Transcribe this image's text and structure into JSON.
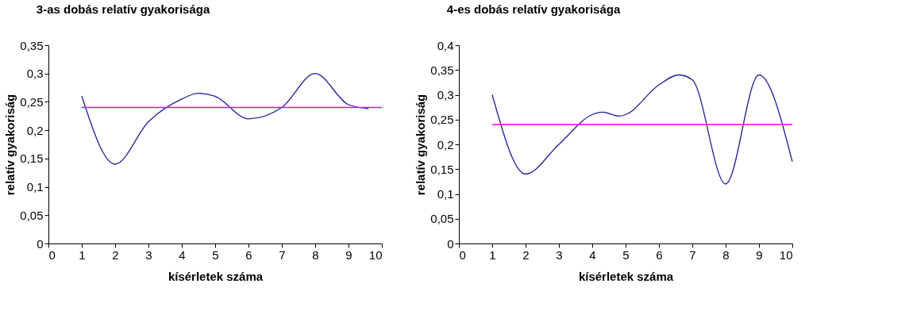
{
  "chart_data": [
    {
      "type": "line",
      "title": "3-as dobás relatív gyakorisága",
      "xlabel": "kísérletek száma",
      "ylabel": "relatív gyakoriság",
      "series": [
        {
          "color": "#1f1f99",
          "x": [
            1,
            2,
            3,
            4,
            4.5,
            5,
            6,
            7,
            8,
            9,
            9.6
          ],
          "values": [
            0.26,
            0.14,
            0.215,
            0.255,
            0.265,
            0.26,
            0.22,
            0.24,
            0.3,
            0.245,
            0.238
          ]
        }
      ],
      "xlim": [
        0,
        10
      ],
      "xticks": [
        0,
        1,
        2,
        3,
        4,
        5,
        6,
        7,
        8,
        9,
        10
      ],
      "ylim": [
        0,
        0.35
      ],
      "yticks": [
        {
          "value": 0,
          "label": "0"
        },
        {
          "value": 0.05,
          "label": "0,05"
        },
        {
          "value": 0.1,
          "label": "0,1"
        },
        {
          "value": 0.15,
          "label": "0,15"
        },
        {
          "value": 0.2,
          "label": "0,2"
        },
        {
          "value": 0.25,
          "label": "0,25"
        },
        {
          "value": 0.3,
          "label": "0,3"
        },
        {
          "value": 0.35,
          "label": "0,35"
        }
      ],
      "ref_lines": [
        {
          "axis": "y",
          "value": 0.24,
          "color": "#ff00ff"
        }
      ],
      "grid": false
    },
    {
      "type": "line",
      "title": "4-es dobás relatív gyakorisága",
      "xlabel": "kísérletek száma",
      "ylabel": "relatív gyakoriság",
      "series": [
        {
          "color": "#1f1f99",
          "x": [
            1,
            2,
            3,
            4,
            4.3,
            4.8,
            5,
            6,
            6.6,
            7,
            8,
            9,
            10
          ],
          "values": [
            0.3,
            0.14,
            0.2,
            0.26,
            0.265,
            0.257,
            0.26,
            0.32,
            0.34,
            0.33,
            0.12,
            0.34,
            0.165
          ]
        }
      ],
      "xlim": [
        0,
        10
      ],
      "xticks": [
        0,
        1,
        2,
        3,
        4,
        5,
        6,
        7,
        8,
        9,
        10
      ],
      "ylim": [
        0,
        0.4
      ],
      "yticks": [
        {
          "value": 0,
          "label": "0"
        },
        {
          "value": 0.05,
          "label": "0,05"
        },
        {
          "value": 0.1,
          "label": "0,1"
        },
        {
          "value": 0.15,
          "label": "0,15"
        },
        {
          "value": 0.2,
          "label": "0,2"
        },
        {
          "value": 0.25,
          "label": "0,25"
        },
        {
          "value": 0.3,
          "label": "0,3"
        },
        {
          "value": 0.35,
          "label": "0,35"
        },
        {
          "value": 0.4,
          "label": "0,4"
        }
      ],
      "ref_lines": [
        {
          "axis": "y",
          "value": 0.24,
          "color": "#ff00ff"
        }
      ],
      "grid": false
    }
  ]
}
